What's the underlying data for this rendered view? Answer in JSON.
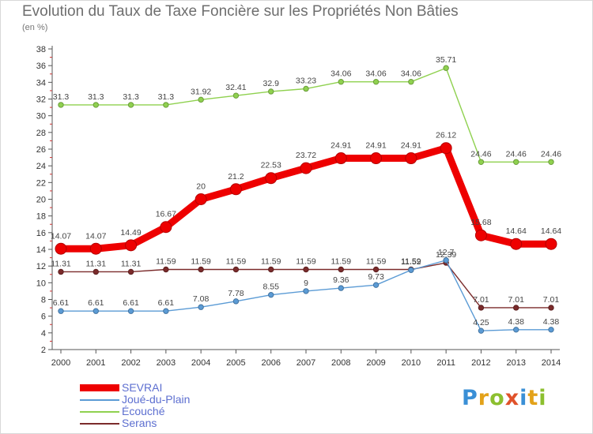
{
  "title": "Evolution du Taux de Taxe Foncière sur les Propriétés Non Bâties",
  "subtitle": "(en %)",
  "logo": {
    "text": "Proxiti",
    "letters": [
      {
        "ch": "P",
        "color": "#3a8fd6"
      },
      {
        "ch": "r",
        "color": "#e3a21a"
      },
      {
        "ch": "o",
        "color": "#8cbf2f"
      },
      {
        "ch": "x",
        "color": "#e0522a"
      },
      {
        "ch": "i",
        "color": "#3a8fd6"
      },
      {
        "ch": "t",
        "color": "#e3a21a"
      },
      {
        "ch": "i",
        "color": "#8cbf2f"
      }
    ]
  },
  "chart_data": {
    "type": "line",
    "title": "Evolution du Taux de Taxe Foncière sur les Propriétés Non Bâties",
    "ylabel": "(en %)",
    "xlabel": "",
    "x": [
      "2000",
      "2001",
      "2002",
      "2003",
      "2004",
      "2005",
      "2006",
      "2007",
      "2008",
      "2009",
      "2010",
      "2011",
      "2012",
      "2013",
      "2014"
    ],
    "ylim": [
      2,
      38
    ],
    "yticks": [
      "2",
      "4",
      "6",
      "8",
      "10",
      "12",
      "14",
      "16",
      "18",
      "20",
      "22",
      "24",
      "26",
      "28",
      "30",
      "32",
      "34",
      "36",
      "38"
    ],
    "grid": false,
    "legend_position": "bottom-left",
    "series": [
      {
        "name": "SEVRAI",
        "color": "#ee0000",
        "width": "thick",
        "values": [
          14.07,
          14.07,
          14.49,
          16.67,
          20,
          21.2,
          22.53,
          23.72,
          24.91,
          24.91,
          24.91,
          26.12,
          15.68,
          14.64,
          14.64
        ],
        "labels": [
          "14.07",
          "14.07",
          "14.49",
          "16.67",
          "20",
          "21.2",
          "22.53",
          "23.72",
          "24.91",
          "24.91",
          "24.91",
          "26.12",
          "15.68",
          "14.64",
          "14.64"
        ]
      },
      {
        "name": "Joué-du-Plain",
        "color": "#5b9bd5",
        "width": "thin",
        "values": [
          6.61,
          6.61,
          6.61,
          6.61,
          7.08,
          7.78,
          8.55,
          9,
          9.36,
          9.73,
          11.52,
          12.7,
          4.25,
          4.38,
          4.38
        ],
        "labels": [
          "6.61",
          "6.61",
          "6.61",
          "6.61",
          "7.08",
          "7.78",
          "8.55",
          "9",
          "9.36",
          "9.73",
          "11.52",
          "12.7",
          "4.25",
          "4.38",
          "4.38"
        ]
      },
      {
        "name": "Écouché",
        "color": "#8fd14f",
        "width": "thin",
        "values": [
          31.3,
          31.3,
          31.3,
          31.3,
          31.92,
          32.41,
          32.9,
          33.23,
          34.06,
          34.06,
          34.06,
          35.71,
          24.46,
          24.46,
          24.46
        ],
        "labels": [
          "31.3",
          "31.3",
          "31.3",
          "31.3",
          "31.92",
          "32.41",
          "32.9",
          "33.23",
          "34.06",
          "34.06",
          "34.06",
          "35.71",
          "24.46",
          "24.46",
          "24.46"
        ]
      },
      {
        "name": "Serans",
        "color": "#7b2b2b",
        "width": "thin",
        "values": [
          11.31,
          11.31,
          11.31,
          11.59,
          11.59,
          11.59,
          11.59,
          11.59,
          11.59,
          11.59,
          11.59,
          12.39,
          7.01,
          7.01,
          7.01
        ],
        "labels": [
          "11.31",
          "11.31",
          "11.31",
          "11.59",
          "11.59",
          "11.59",
          "11.59",
          "11.59",
          "11.59",
          "11.59",
          "11.59",
          "12.39",
          "7.01",
          "7.01",
          "7.01"
        ]
      }
    ]
  }
}
